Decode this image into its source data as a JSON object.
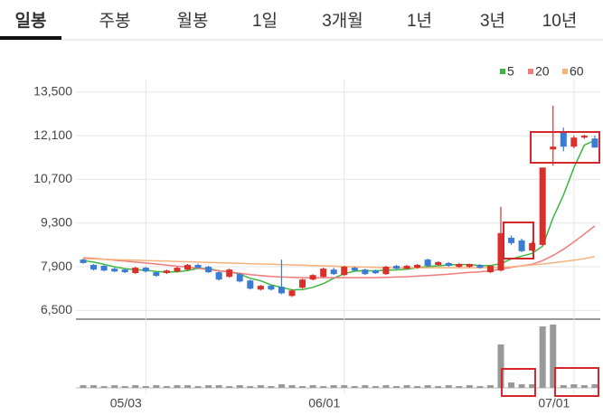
{
  "tabs": [
    "일봉",
    "주봉",
    "월봉",
    "1일",
    "3개월",
    "1년",
    "3년",
    "10년"
  ],
  "selected_tab": 0,
  "chart_data": {
    "type": "candlestick",
    "categories": [
      null,
      null,
      null,
      null,
      null,
      null,
      "05/03",
      null,
      null,
      null,
      null,
      null,
      null,
      null,
      null,
      null,
      null,
      null,
      null,
      null,
      null,
      null,
      null,
      null,
      null,
      "06/01",
      null,
      null,
      null,
      null,
      null,
      null,
      null,
      null,
      null,
      null,
      null,
      null,
      null,
      null,
      null,
      null,
      null,
      null,
      null,
      null,
      null,
      "07/01",
      null,
      null
    ],
    "ylim": [
      6250,
      13900
    ],
    "yticks": [
      {
        "value": 6500,
        "label": "6,500"
      },
      {
        "value": 7900,
        "label": "7,900"
      },
      {
        "value": 9300,
        "label": "9,300"
      },
      {
        "value": 10700,
        "label": "10,700"
      },
      {
        "value": 12100,
        "label": "12,100"
      },
      {
        "value": 13500,
        "label": "13,500"
      }
    ],
    "grid": true,
    "up_color": "#d9302c",
    "down_color": "#3a7bd5",
    "open": [
      8130,
      7960,
      7930,
      7840,
      7810,
      7700,
      7870,
      7725,
      7700,
      7750,
      7810,
      7960,
      7900,
      7725,
      7580,
      7665,
      7460,
      7170,
      7290,
      7260,
      6965,
      7230,
      7490,
      7580,
      7810,
      7635,
      7870,
      7810,
      7780,
      7665,
      7930,
      7840,
      7870,
      8130,
      7960,
      8020,
      7900,
      7900,
      7960,
      7725,
      7780,
      8830,
      8745,
      8425,
      8600,
      11660,
      12245,
      11750,
      12040,
      12010
    ],
    "high": [
      8160,
      7990,
      7960,
      7870,
      7840,
      7900,
      7900,
      7750,
      7810,
      7900,
      7990,
      8000,
      7930,
      7750,
      7840,
      7700,
      7490,
      7320,
      7320,
      8130,
      7170,
      7520,
      7660,
      7870,
      7870,
      7930,
      7900,
      7840,
      7810,
      7930,
      7960,
      7960,
      7990,
      8160,
      8075,
      8050,
      8020,
      8000,
      7990,
      7960,
      9825,
      8900,
      8800,
      8700,
      11080,
      13060,
      12360,
      12100,
      12130,
      12100
    ],
    "low": [
      8000,
      7780,
      7750,
      7720,
      7700,
      7670,
      7720,
      7580,
      7670,
      7720,
      7780,
      7840,
      7700,
      7460,
      7550,
      7400,
      7170,
      7140,
      7140,
      7020,
      6930,
      7200,
      7460,
      7550,
      7640,
      7610,
      7750,
      7640,
      7670,
      7640,
      7810,
      7810,
      7840,
      7900,
      7930,
      7900,
      7870,
      7870,
      7840,
      7700,
      7750,
      8600,
      8370,
      8400,
      8570,
      11140,
      11600,
      11700,
      12000,
      11720
    ],
    "close": [
      8020,
      7810,
      7780,
      7750,
      7725,
      7870,
      7750,
      7610,
      7780,
      7870,
      7960,
      7870,
      7725,
      7490,
      7810,
      7430,
      7200,
      7290,
      7170,
      7050,
      7140,
      7490,
      7635,
      7840,
      7665,
      7900,
      7780,
      7665,
      7695,
      7900,
      7840,
      7930,
      7960,
      7930,
      8050,
      7930,
      7990,
      7990,
      7870,
      7930,
      8980,
      8660,
      8400,
      8660,
      11080,
      11750,
      11750,
      12040,
      12100,
      11720
    ],
    "series": [
      {
        "name": "5",
        "color": "#3cb83c",
        "values": [
          8100,
          8050,
          7980,
          7900,
          7840,
          7810,
          7790,
          7750,
          7730,
          7740,
          7780,
          7850,
          7840,
          7770,
          7740,
          7660,
          7530,
          7450,
          7320,
          7240,
          7160,
          7170,
          7240,
          7360,
          7530,
          7680,
          7760,
          7770,
          7770,
          7790,
          7800,
          7820,
          7870,
          7910,
          7930,
          7960,
          7970,
          7970,
          7940,
          7940,
          8000,
          8150,
          8240,
          8330,
          8560,
          9470,
          10200,
          11080,
          11800,
          11950
        ]
      },
      {
        "name": "20",
        "color": "#ef7b7b",
        "values": [
          8190,
          8170,
          8140,
          8110,
          8080,
          8050,
          8020,
          7990,
          7950,
          7920,
          7890,
          7850,
          7810,
          7770,
          7730,
          7690,
          7650,
          7620,
          7590,
          7570,
          7560,
          7550,
          7550,
          7550,
          7550,
          7550,
          7550,
          7550,
          7550,
          7560,
          7570,
          7580,
          7600,
          7620,
          7640,
          7660,
          7690,
          7720,
          7740,
          7770,
          7820,
          7880,
          7930,
          7980,
          8100,
          8260,
          8460,
          8700,
          8950,
          9210
        ]
      },
      {
        "name": "60",
        "color": "#f5b27a",
        "values": [
          8160,
          8150,
          8140,
          8130,
          8120,
          8110,
          8100,
          8090,
          8080,
          8070,
          8060,
          8050,
          8040,
          8030,
          8020,
          8010,
          8000,
          7990,
          7980,
          7970,
          7960,
          7950,
          7940,
          7930,
          7920,
          7910,
          7900,
          7890,
          7880,
          7870,
          7870,
          7870,
          7870,
          7870,
          7870,
          7870,
          7870,
          7870,
          7870,
          7870,
          7880,
          7900,
          7930,
          7960,
          7990,
          8030,
          8070,
          8110,
          8160,
          8230
        ]
      }
    ],
    "volume": {
      "color": "#999999",
      "values": [
        3,
        3,
        2,
        3,
        2,
        3,
        2,
        3,
        2,
        3,
        3,
        2,
        3,
        3,
        2,
        3,
        2,
        3,
        2,
        4,
        3,
        2,
        3,
        2,
        3,
        3,
        2,
        3,
        2,
        3,
        2,
        3,
        2,
        3,
        2,
        3,
        2,
        3,
        2,
        3,
        48,
        6,
        4,
        4,
        68,
        70,
        3,
        4,
        3,
        4
      ]
    }
  }
}
